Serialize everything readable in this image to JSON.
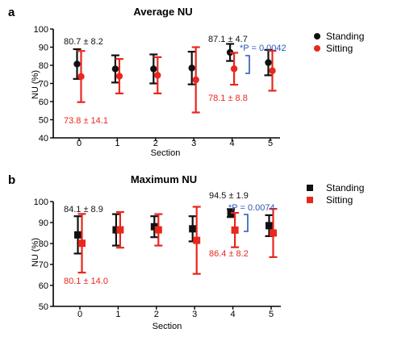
{
  "colors": {
    "standing": "#111111",
    "sitting": "#e8271d",
    "annotation": "#2b57b8",
    "axis": "#000000"
  },
  "chart_data": [
    {
      "panel_label": "a",
      "type": "scatter",
      "title": "Average NU",
      "xlabel": "Section",
      "ylabel": "NU (%)",
      "ylim": [
        40,
        100
      ],
      "yticks": [
        "40",
        "50",
        "60",
        "70",
        "80",
        "90",
        "100"
      ],
      "categories": [
        "0",
        "1",
        "2",
        "3",
        "4",
        "5"
      ],
      "grid": false,
      "legend_position": "top-right",
      "series": [
        {
          "name": "Standing",
          "marker": "circle",
          "color": "#111111",
          "offset": "left",
          "mean": [
            80.7,
            78.0,
            78.0,
            78.5,
            87.1,
            81.5
          ],
          "sd": [
            8.2,
            7.5,
            8.0,
            9.0,
            4.7,
            7.0
          ]
        },
        {
          "name": "Sitting",
          "marker": "circle",
          "color": "#e8271d",
          "offset": "right",
          "mean": [
            73.8,
            74.0,
            74.5,
            72.0,
            78.1,
            77.0
          ],
          "sd": [
            14.1,
            9.5,
            10.0,
            18.0,
            8.8,
            11.0
          ]
        }
      ],
      "annotations": {
        "standing_label": "80.7 ± 8.2",
        "sitting_label": "73.8 ± 14.1",
        "s4_standing_label": "87.1 ± 4.7",
        "s4_sitting_label": "78.1 ± 8.8",
        "pvalue_label": "*P = 0.0042"
      }
    },
    {
      "panel_label": "b",
      "type": "scatter",
      "title": "Maximum NU",
      "xlabel": "Section",
      "ylabel": "NU (%)",
      "ylim": [
        50,
        100
      ],
      "yticks": [
        "50",
        "60",
        "70",
        "80",
        "90",
        "100"
      ],
      "categories": [
        "0",
        "1",
        "2",
        "3",
        "4",
        "5"
      ],
      "grid": false,
      "legend_position": "top-right",
      "series": [
        {
          "name": "Standing",
          "marker": "square",
          "color": "#111111",
          "offset": "left",
          "mean": [
            84.1,
            86.5,
            88.0,
            87.0,
            94.5,
            88.5
          ],
          "sd": [
            8.9,
            7.5,
            5.0,
            6.0,
            1.9,
            5.0
          ]
        },
        {
          "name": "Sitting",
          "marker": "square",
          "color": "#e8271d",
          "offset": "right",
          "mean": [
            80.1,
            86.5,
            86.5,
            81.5,
            86.4,
            85.0
          ],
          "sd": [
            14.0,
            8.5,
            7.5,
            16.0,
            8.2,
            11.5
          ]
        }
      ],
      "annotations": {
        "standing_label": "84.1 ± 8.9",
        "sitting_label": "80.1 ± 14.0",
        "s4_standing_label": "94.5 ± 1.9",
        "s4_sitting_label": "86.4 ± 8.2",
        "pvalue_label": "*P = 0.0074"
      }
    }
  ]
}
